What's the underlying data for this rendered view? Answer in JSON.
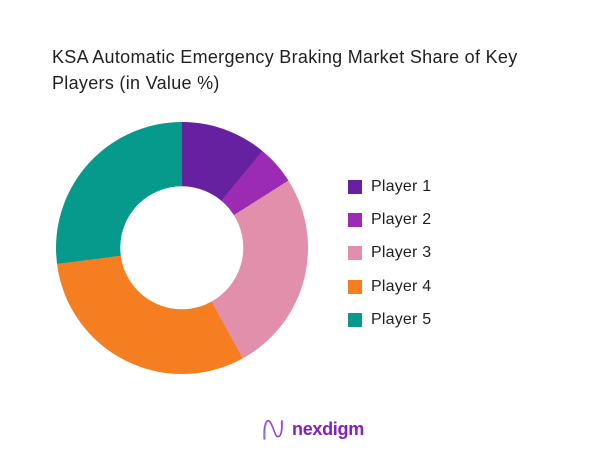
{
  "page": {
    "background": "#ffffff"
  },
  "chart_data": {
    "type": "pie",
    "subtype": "donut",
    "title": "KSA Automatic Emergency Braking Market Share of Key Players (in Value %)",
    "categories": [
      "Player 1",
      "Player 2",
      "Player 3",
      "Player 4",
      "Player 5"
    ],
    "values": [
      11,
      5,
      26,
      31,
      27
    ],
    "unit": "value %",
    "colors": [
      "#6621a0",
      "#9a2bb2",
      "#e18fab",
      "#f57e20",
      "#069a8d"
    ],
    "start_angle_deg": 0,
    "direction": "clockwise",
    "donut_hole_ratio": 0.49,
    "legend_position": "right",
    "data_labels_shown": false
  },
  "footer": {
    "brand": "nexdigm",
    "brand_color": "#8221be"
  }
}
